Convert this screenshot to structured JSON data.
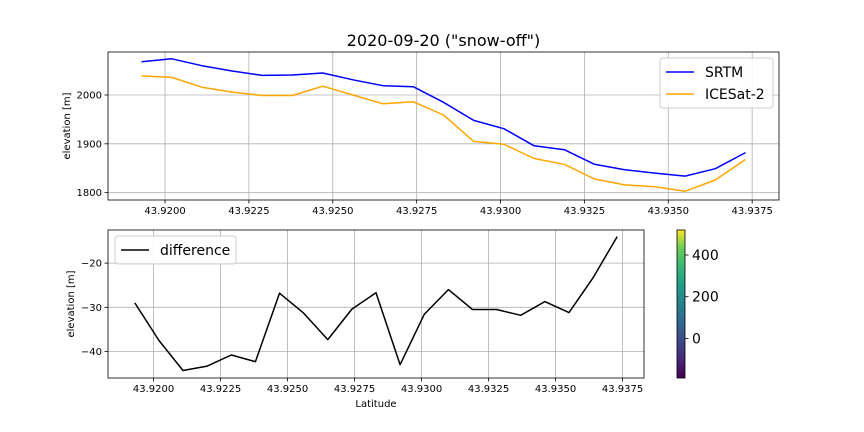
{
  "chart_data": [
    {
      "type": "line",
      "title": "2020-09-20 (\"snow-off\")",
      "xlabel": "",
      "ylabel": "elevation [m]",
      "xlim": [
        43.9183,
        43.9383
      ],
      "ylim": [
        1785,
        2088
      ],
      "xticks": [
        43.92,
        43.9225,
        43.925,
        43.9275,
        43.93,
        43.9325,
        43.935,
        43.9375
      ],
      "xtick_labels": [
        "43.9200",
        "43.9225",
        "43.9250",
        "43.9275",
        "43.9300",
        "43.9325",
        "43.9350",
        "43.9375"
      ],
      "yticks": [
        1800,
        1900,
        2000
      ],
      "ytick_labels": [
        "1800",
        "1900",
        "2000"
      ],
      "grid": true,
      "legend_position": "top-right",
      "x": [
        43.9193,
        43.9202,
        43.9211,
        43.922,
        43.9229,
        43.9238,
        43.9247,
        43.9256,
        43.9265,
        43.9274,
        43.9283,
        43.9292,
        43.9301,
        43.931,
        43.9319,
        43.9328,
        43.9337,
        43.9346,
        43.9355,
        43.9364,
        43.9373
      ],
      "series": [
        {
          "name": "SRTM",
          "color": "#0000ff",
          "values": [
            2068,
            2074,
            2060,
            2049,
            2040,
            2041,
            2045,
            2031,
            2019,
            2017,
            1985,
            1948,
            1931,
            1896,
            1888,
            1858,
            1847,
            1840,
            1834,
            1849,
            1882
          ]
        },
        {
          "name": "ICESat-2",
          "color": "#ffa500",
          "values": [
            2039,
            2036,
            2016,
            2006,
            1999,
            1999,
            2018,
            2000,
            1982,
            1986,
            1959,
            1905,
            1899,
            1870,
            1858,
            1828,
            1816,
            1812,
            1803,
            1826,
            1868
          ]
        }
      ]
    },
    {
      "type": "line",
      "xlabel": "Latitude",
      "ylabel": "elevation [m]",
      "xlim": [
        43.9183,
        43.9383
      ],
      "ylim": [
        -46,
        -12.5
      ],
      "xticks": [
        43.92,
        43.9225,
        43.925,
        43.9275,
        43.93,
        43.9325,
        43.935,
        43.9375
      ],
      "xtick_labels": [
        "43.9200",
        "43.9225",
        "43.9250",
        "43.9275",
        "43.9300",
        "43.9325",
        "43.9350",
        "43.9375"
      ],
      "yticks": [
        -40,
        -30,
        -20
      ],
      "ytick_labels": [
        "−40",
        "−30",
        "−20"
      ],
      "grid": true,
      "legend_position": "top-left",
      "x": [
        43.9193,
        43.9202,
        43.9211,
        43.922,
        43.9229,
        43.9238,
        43.9247,
        43.9256,
        43.9265,
        43.9274,
        43.9283,
        43.9292,
        43.9301,
        43.931,
        43.9319,
        43.9328,
        43.9337,
        43.9346,
        43.9355,
        43.9364,
        43.9373
      ],
      "series": [
        {
          "name": "difference",
          "color": "#000000",
          "values": [
            -29,
            -37.5,
            -44.3,
            -43.3,
            -40.8,
            -42.3,
            -26.8,
            -31.3,
            -37.3,
            -30.4,
            -26.7,
            -43,
            -31.6,
            -26,
            -30.5,
            -30.5,
            -31.8,
            -28.7,
            -31.2,
            -23.3,
            -14
          ]
        }
      ]
    },
    {
      "type": "colorbar",
      "range": [
        -190,
        520
      ],
      "ticks": [
        0,
        200,
        400
      ],
      "tick_labels": [
        "0",
        "200",
        "400"
      ],
      "colormap": "viridis"
    }
  ]
}
